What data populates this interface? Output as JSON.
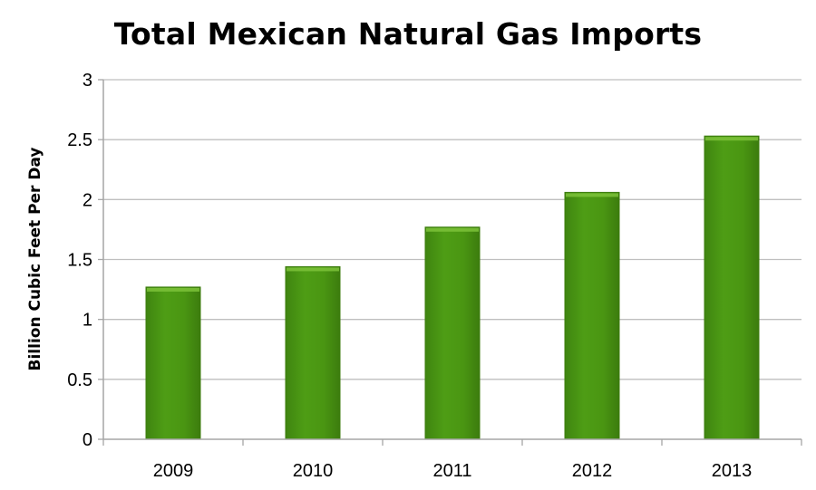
{
  "chart_data": {
    "type": "bar",
    "title": "Total Mexican Natural Gas Imports",
    "xlabel": "",
    "ylabel": "Billion Cubic Feet Per Day",
    "categories": [
      "2009",
      "2010",
      "2011",
      "2012",
      "2013"
    ],
    "values": [
      1.27,
      1.44,
      1.77,
      2.06,
      2.53
    ],
    "ylim": [
      0,
      3
    ],
    "yticks": [
      "0",
      "0.5",
      "1",
      "1.5",
      "2",
      "2.5",
      "3"
    ],
    "grid": true,
    "legend": "none",
    "colors": {
      "bar_fill": "#4a9612",
      "bar_edge": "#3c7c0e",
      "bar_highlight": "#7cc23a",
      "grid": "#bfbfbf",
      "axis": "#a6a6a6"
    }
  }
}
